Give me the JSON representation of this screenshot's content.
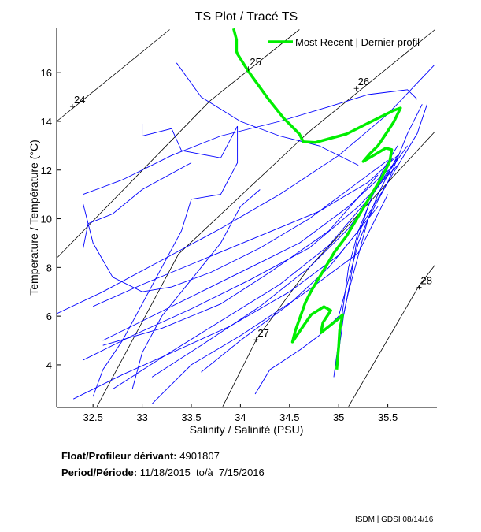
{
  "chart_data": {
    "type": "line",
    "title": "TS Plot / Tracé TS",
    "xlabel": "Salinity / Salinité (PSU)",
    "ylabel": "Temperature / Température (°C)",
    "xlim": [
      32.13,
      36.0
    ],
    "ylim": [
      2.25,
      17.85
    ],
    "xticks": [
      32.5,
      33,
      33.5,
      34,
      34.5,
      35,
      35.5
    ],
    "xtick_labels": [
      "32.5",
      "33",
      "33.5",
      "34",
      "34.5",
      "35",
      "35.5"
    ],
    "yticks": [
      4,
      6,
      8,
      10,
      12,
      14,
      16
    ],
    "ytick_labels": [
      "4",
      "6",
      "8",
      "10",
      "12",
      "14",
      "16"
    ],
    "legend": {
      "label": "Most Recent | Dernier profil",
      "position": "top-right"
    },
    "colors": {
      "profiles": "#0000ff",
      "recent": "#00ee00",
      "contours": "#000000"
    },
    "contours": [
      {
        "label": "24",
        "mark": [
          32.29,
          14.61
        ],
        "points": [
          [
            32.14,
            14.03
          ],
          [
            33.28,
            17.77
          ]
        ]
      },
      {
        "label": "25",
        "mark": [
          34.08,
          16.16
        ],
        "points": [
          [
            32.14,
            8.42
          ],
          [
            33.69,
            14.84
          ],
          [
            34.6,
            17.77
          ]
        ]
      },
      {
        "label": "26",
        "mark": [
          35.18,
          15.35
        ],
        "points": [
          [
            32.54,
            2.29
          ],
          [
            33.37,
            8.55
          ],
          [
            34.7,
            13.58
          ],
          [
            35.98,
            17.77
          ]
        ]
      },
      {
        "label": "27",
        "mark": [
          34.16,
          5.03
        ],
        "points": [
          [
            33.82,
            2.29
          ],
          [
            34.17,
            5.1
          ],
          [
            34.7,
            8.0
          ],
          [
            35.98,
            13.58
          ]
        ]
      },
      {
        "label": "28",
        "mark": [
          35.82,
          7.19
        ],
        "points": [
          [
            35.1,
            2.29
          ],
          [
            35.82,
            7.26
          ],
          [
            35.98,
            8.1
          ]
        ]
      }
    ],
    "profiles": [
      [
        [
          32.13,
          6.1
        ],
        [
          32.6,
          7.0
        ],
        [
          33.2,
          8.3
        ],
        [
          33.8,
          9.6
        ],
        [
          34.4,
          11.0
        ],
        [
          35.0,
          12.6
        ],
        [
          35.5,
          14.3
        ],
        [
          35.97,
          16.3
        ]
      ],
      [
        [
          33.35,
          16.4
        ],
        [
          33.6,
          15.0
        ],
        [
          34.0,
          14.0
        ],
        [
          34.4,
          13.4
        ],
        [
          34.8,
          13.0
        ],
        [
          35.1,
          12.4
        ],
        [
          35.2,
          12.2
        ]
      ],
      [
        [
          32.4,
          11.0
        ],
        [
          32.8,
          11.6
        ],
        [
          33.3,
          12.6
        ],
        [
          33.8,
          13.4
        ],
        [
          34.4,
          14.0
        ],
        [
          34.9,
          14.6
        ],
        [
          35.3,
          15.1
        ],
        [
          35.7,
          15.3
        ],
        [
          35.8,
          14.9
        ]
      ],
      [
        [
          33.0,
          13.9
        ],
        [
          33.0,
          13.4
        ],
        [
          33.3,
          13.7
        ],
        [
          33.4,
          12.8
        ],
        [
          33.8,
          12.5
        ],
        [
          33.97,
          13.8
        ],
        [
          33.97,
          12.3
        ],
        [
          33.8,
          11.0
        ],
        [
          33.5,
          10.8
        ],
        [
          33.4,
          9.5
        ],
        [
          33.2,
          8.0
        ],
        [
          33.0,
          6.5
        ],
        [
          32.8,
          5.0
        ],
        [
          32.6,
          3.8
        ],
        [
          32.5,
          2.7
        ]
      ],
      [
        [
          32.4,
          10.6
        ],
        [
          32.5,
          9.0
        ],
        [
          32.7,
          7.6
        ],
        [
          33.0,
          7.0
        ],
        [
          33.3,
          7.2
        ],
        [
          33.7,
          7.8
        ],
        [
          34.2,
          8.8
        ],
        [
          34.7,
          10.0
        ],
        [
          35.2,
          11.5
        ],
        [
          35.5,
          12.4
        ]
      ],
      [
        [
          33.5,
          12.3
        ],
        [
          33.0,
          11.2
        ],
        [
          32.7,
          10.2
        ],
        [
          32.45,
          9.8
        ],
        [
          32.4,
          8.8
        ]
      ],
      [
        [
          34.2,
          11.2
        ],
        [
          34.0,
          10.5
        ],
        [
          33.8,
          9.0
        ],
        [
          33.5,
          7.5
        ],
        [
          33.2,
          6.0
        ],
        [
          33.0,
          4.5
        ],
        [
          32.9,
          3.0
        ]
      ],
      [
        [
          32.5,
          6.4
        ],
        [
          33.0,
          7.3
        ],
        [
          33.6,
          8.3
        ],
        [
          34.2,
          9.3
        ],
        [
          34.8,
          10.3
        ],
        [
          35.3,
          11.5
        ],
        [
          35.6,
          12.6
        ]
      ],
      [
        [
          32.6,
          5.0
        ],
        [
          33.1,
          6.0
        ],
        [
          33.6,
          7.0
        ],
        [
          34.1,
          8.0
        ],
        [
          34.6,
          9.0
        ],
        [
          35.1,
          10.5
        ],
        [
          35.5,
          12.0
        ]
      ],
      [
        [
          32.4,
          4.2
        ],
        [
          32.9,
          5.2
        ],
        [
          33.5,
          6.3
        ],
        [
          34.1,
          7.5
        ],
        [
          34.7,
          8.8
        ],
        [
          35.2,
          10.5
        ],
        [
          35.6,
          12.2
        ]
      ],
      [
        [
          32.7,
          3.0
        ],
        [
          33.2,
          4.3
        ],
        [
          33.8,
          5.8
        ],
        [
          34.4,
          7.3
        ],
        [
          34.9,
          8.9
        ],
        [
          35.3,
          10.8
        ],
        [
          35.6,
          12.5
        ]
      ],
      [
        [
          33.1,
          3.5
        ],
        [
          33.6,
          4.8
        ],
        [
          34.2,
          6.4
        ],
        [
          34.7,
          8.0
        ],
        [
          35.1,
          9.6
        ],
        [
          35.4,
          11.3
        ],
        [
          35.7,
          13.0
        ]
      ],
      [
        [
          34.15,
          2.8
        ],
        [
          34.3,
          3.8
        ],
        [
          34.6,
          4.6
        ],
        [
          34.8,
          5.2
        ],
        [
          35.0,
          6.0
        ],
        [
          35.1,
          7.5
        ],
        [
          35.2,
          9.0
        ],
        [
          35.4,
          11.0
        ],
        [
          35.6,
          12.6
        ]
      ],
      [
        [
          33.6,
          3.7
        ],
        [
          34.0,
          5.0
        ],
        [
          34.5,
          6.5
        ],
        [
          34.9,
          8.0
        ],
        [
          35.2,
          9.5
        ],
        [
          35.5,
          11.5
        ],
        [
          35.8,
          13.5
        ],
        [
          35.9,
          14.7
        ]
      ],
      [
        [
          34.95,
          3.5
        ],
        [
          35.0,
          5.0
        ],
        [
          35.05,
          6.5
        ],
        [
          35.1,
          8.0
        ],
        [
          35.2,
          9.5
        ],
        [
          35.35,
          11.0
        ],
        [
          35.55,
          12.5
        ]
      ],
      [
        [
          35.0,
          4.5
        ],
        [
          35.05,
          6.0
        ],
        [
          35.12,
          7.5
        ],
        [
          35.18,
          9.0
        ],
        [
          35.3,
          10.5
        ],
        [
          35.45,
          12.0
        ],
        [
          35.6,
          13.0
        ]
      ],
      [
        [
          35.02,
          5.5
        ],
        [
          35.1,
          7.0
        ],
        [
          35.2,
          8.5
        ],
        [
          35.3,
          10.0
        ],
        [
          35.5,
          11.5
        ],
        [
          35.7,
          13.5
        ],
        [
          35.85,
          14.7
        ]
      ],
      [
        [
          32.3,
          2.6
        ],
        [
          32.8,
          3.6
        ],
        [
          33.3,
          4.5
        ],
        [
          33.9,
          5.6
        ],
        [
          34.5,
          7.0
        ],
        [
          35.0,
          8.5
        ],
        [
          35.4,
          10.5
        ]
      ],
      [
        [
          33.1,
          2.4
        ],
        [
          33.5,
          4.0
        ],
        [
          34.0,
          5.2
        ],
        [
          34.6,
          6.8
        ],
        [
          35.2,
          8.6
        ],
        [
          35.5,
          11.0
        ]
      ],
      [
        [
          32.6,
          4.8
        ],
        [
          33.2,
          5.5
        ],
        [
          33.8,
          6.5
        ],
        [
          34.3,
          7.8
        ],
        [
          34.9,
          9.5
        ],
        [
          35.4,
          11.8
        ]
      ]
    ],
    "most_recent": [
      [
        33.93,
        17.81
      ],
      [
        33.96,
        17.35
      ],
      [
        33.96,
        16.87
      ],
      [
        33.97,
        16.77
      ],
      [
        34.08,
        16.06
      ],
      [
        34.28,
        14.94
      ],
      [
        34.44,
        14.13
      ],
      [
        34.6,
        13.48
      ],
      [
        34.64,
        13.16
      ],
      [
        34.76,
        13.13
      ],
      [
        35.08,
        13.48
      ],
      [
        35.32,
        13.97
      ],
      [
        35.56,
        14.45
      ],
      [
        35.63,
        14.55
      ],
      [
        35.56,
        13.97
      ],
      [
        35.48,
        13.48
      ],
      [
        35.4,
        13.0
      ],
      [
        35.32,
        12.68
      ],
      [
        35.25,
        12.35
      ],
      [
        35.32,
        12.52
      ],
      [
        35.48,
        12.9
      ],
      [
        35.54,
        12.84
      ],
      [
        35.52,
        12.35
      ],
      [
        35.44,
        11.71
      ],
      [
        35.32,
        10.9
      ],
      [
        35.2,
        10.1
      ],
      [
        35.08,
        9.29
      ],
      [
        34.96,
        8.65
      ],
      [
        34.84,
        7.84
      ],
      [
        34.72,
        7.03
      ],
      [
        34.66,
        6.55
      ],
      [
        34.56,
        5.42
      ],
      [
        34.53,
        4.94
      ],
      [
        34.61,
        5.42
      ],
      [
        34.72,
        6.06
      ],
      [
        34.85,
        6.39
      ],
      [
        34.92,
        6.23
      ],
      [
        34.84,
        5.74
      ],
      [
        34.82,
        5.32
      ],
      [
        35.0,
        5.9
      ],
      [
        35.04,
        6.06
      ],
      [
        35.01,
        5.42
      ],
      [
        35.0,
        4.77
      ],
      [
        34.98,
        3.81
      ]
    ]
  },
  "info": {
    "float_label": "Float/Profileur dérivant:",
    "float_id": "4901807",
    "period_label": "Period/Période:",
    "period_value": "11/18/2015  to/à  7/15/2016"
  },
  "footer": "ISDM | GDSI  08/14/16"
}
